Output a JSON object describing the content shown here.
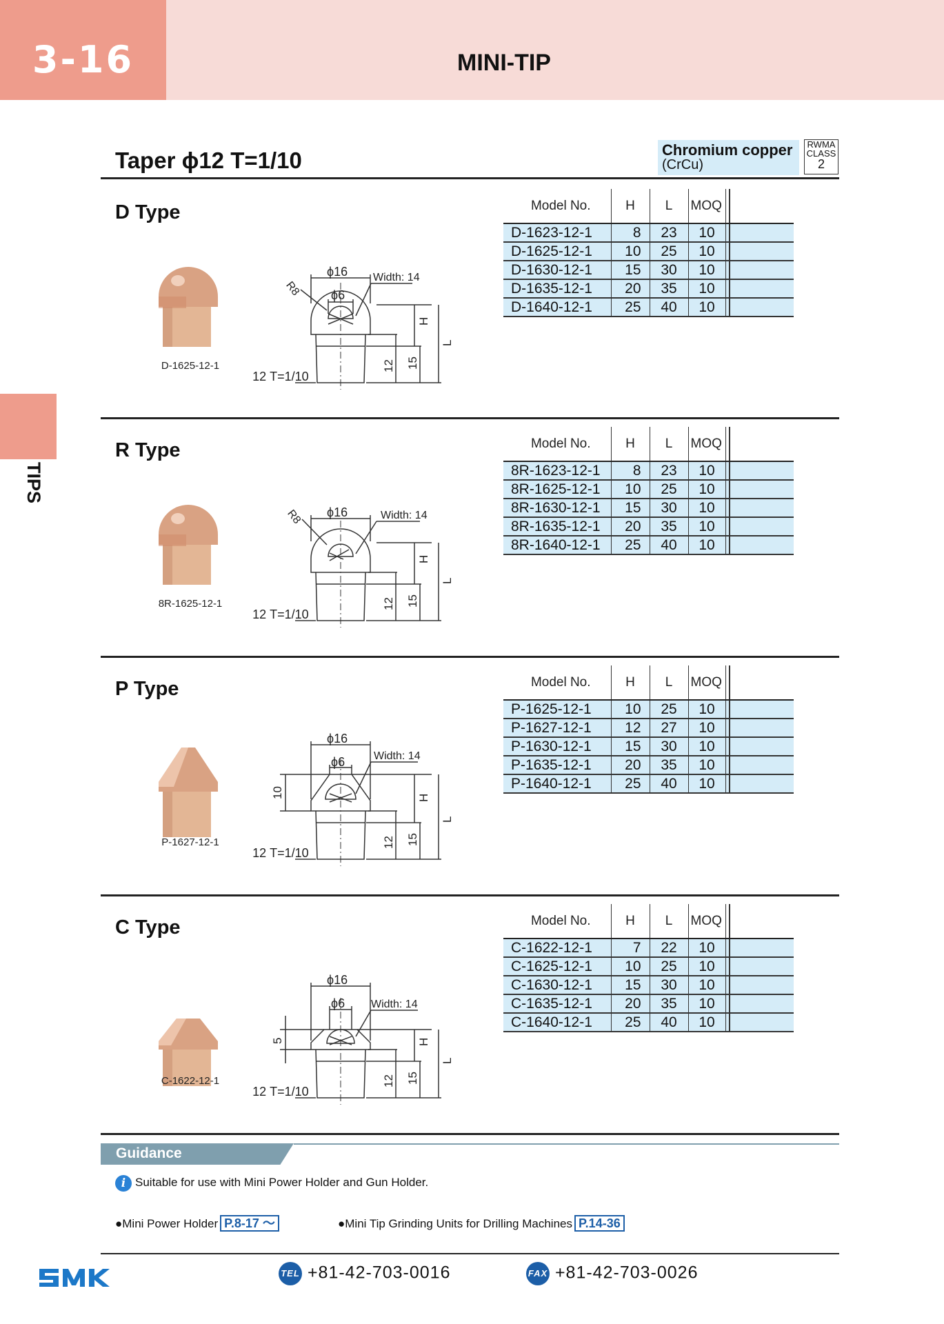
{
  "header": {
    "page_number": "3-16",
    "title": "MINI-TIP"
  },
  "side_tab": {
    "label": "TIPS"
  },
  "section_title": "Taper ϕ12 T=1/10",
  "material": {
    "name": "Chromium copper",
    "code": "(CrCu)",
    "rwma_line1": "RWMA",
    "rwma_line2": "CLASS",
    "rwma_class": "2"
  },
  "table_headers": {
    "model": "Model No.",
    "h": "H",
    "l": "L",
    "moq": "MOQ"
  },
  "drawing_labels": {
    "outer_dia": "ϕ16",
    "inner_dia": "ϕ6",
    "width": "Width: 14",
    "radius": "R8",
    "taper": "ϕ12 T=1/10",
    "h": "H",
    "l": "L",
    "dim_12": "12",
    "dim_15": "15"
  },
  "types": [
    {
      "title": "D Type",
      "photo_label": "D-1625-12-1",
      "rows": [
        {
          "model": "D-1623-12-1",
          "h": "8",
          "l": "23",
          "moq": "10"
        },
        {
          "model": "D-1625-12-1",
          "h": "10",
          "l": "25",
          "moq": "10"
        },
        {
          "model": "D-1630-12-1",
          "h": "15",
          "l": "30",
          "moq": "10"
        },
        {
          "model": "D-1635-12-1",
          "h": "20",
          "l": "35",
          "moq": "10"
        },
        {
          "model": "D-1640-12-1",
          "h": "25",
          "l": "40",
          "moq": "10"
        }
      ]
    },
    {
      "title": "R Type",
      "photo_label": "8R-1625-12-1",
      "rows": [
        {
          "model": "8R-1623-12-1",
          "h": "8",
          "l": "23",
          "moq": "10"
        },
        {
          "model": "8R-1625-12-1",
          "h": "10",
          "l": "25",
          "moq": "10"
        },
        {
          "model": "8R-1630-12-1",
          "h": "15",
          "l": "30",
          "moq": "10"
        },
        {
          "model": "8R-1635-12-1",
          "h": "20",
          "l": "35",
          "moq": "10"
        },
        {
          "model": "8R-1640-12-1",
          "h": "25",
          "l": "40",
          "moq": "10"
        }
      ]
    },
    {
      "title": "P Type",
      "photo_label": "P-1627-12-1",
      "tip_dim": "10",
      "rows": [
        {
          "model": "P-1625-12-1",
          "h": "10",
          "l": "25",
          "moq": "10"
        },
        {
          "model": "P-1627-12-1",
          "h": "12",
          "l": "27",
          "moq": "10"
        },
        {
          "model": "P-1630-12-1",
          "h": "15",
          "l": "30",
          "moq": "10"
        },
        {
          "model": "P-1635-12-1",
          "h": "20",
          "l": "35",
          "moq": "10"
        },
        {
          "model": "P-1640-12-1",
          "h": "25",
          "l": "40",
          "moq": "10"
        }
      ]
    },
    {
      "title": "C Type",
      "photo_label": "C-1622-12-1",
      "tip_dim": "5",
      "rows": [
        {
          "model": "C-1622-12-1",
          "h": "7",
          "l": "22",
          "moq": "10"
        },
        {
          "model": "C-1625-12-1",
          "h": "10",
          "l": "25",
          "moq": "10"
        },
        {
          "model": "C-1630-12-1",
          "h": "15",
          "l": "30",
          "moq": "10"
        },
        {
          "model": "C-1635-12-1",
          "h": "20",
          "l": "35",
          "moq": "10"
        },
        {
          "model": "C-1640-12-1",
          "h": "25",
          "l": "40",
          "moq": "10"
        }
      ]
    }
  ],
  "guidance": {
    "title": "Guidance",
    "note": "Suitable for use with Mini Power Holder and Gun Holder.",
    "ref1_label": "●Mini Power Holder",
    "ref1_page": "P.8-17 ～",
    "ref2_label": "●Mini Tip Grinding Units for Drilling Machines",
    "ref2_page": "P.14-36"
  },
  "footer": {
    "logo": "SMK",
    "tel_icon": "TEL",
    "tel": "+81-42-703-0016",
    "fax_icon": "FAX",
    "fax": "+81-42-703-0026"
  },
  "colors": {
    "header_accent": "#ee9c8c",
    "header_bg": "#f7dbd7",
    "table_highlight": "#d5ecf8",
    "guidance_bar": "#7f9fae",
    "link_blue": "#1c5ea7"
  }
}
